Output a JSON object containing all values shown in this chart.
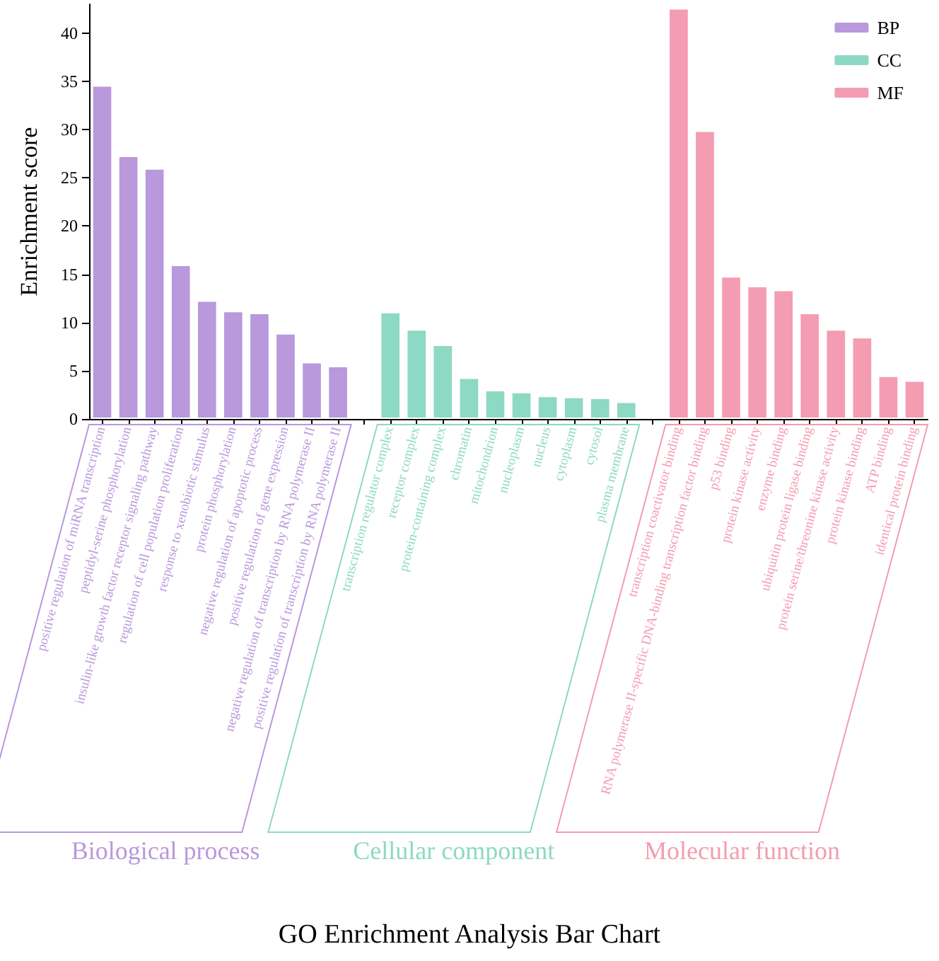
{
  "chart_data": {
    "type": "bar",
    "title": "GO Enrichment Analysis Bar Chart",
    "ylabel": "Enrichment score",
    "categories": [
      "positive regulation of miRNA transcription",
      "peptidyl-serine phosphorylation",
      "insulin-like growth factor receptor signaling pathway",
      "regulation of cell population proliferation",
      "response to xenobiotic stimulus",
      "protein phosphorylation",
      "negative regulation of apoptotic process",
      "positive regulation of gene expression",
      "negative regulation of transcription by RNA polymerase II",
      "positive regulation of transcription by RNA polymerase II",
      null,
      "transcription regulator complex",
      "receptor complex",
      "protein-containing complex",
      "chromatin",
      "mitochondrion",
      "nucleoplasm",
      "nucleus",
      "cytoplasm",
      "cytosol",
      "plasma membrane",
      null,
      "transcription coactivator binding",
      "RNA polymerase II-specific DNA-binding transcription factor binding",
      "p53 binding",
      "protein kinase activity",
      "enzyme binding",
      "ubiquitin protein ligase binding",
      "protein serine/threonine kinase activity",
      "protein kinase binding",
      "ATP binding",
      "identical protein binding"
    ],
    "series": [
      {
        "name": "BP",
        "color": "#b998dc",
        "values": [
          34.6,
          27.3,
          26.0,
          16.0,
          12.3,
          11.2,
          11.0,
          8.9,
          5.9,
          5.5,
          null,
          null,
          null,
          null,
          null,
          null,
          null,
          null,
          null,
          null,
          null,
          null,
          null,
          null,
          null,
          null,
          null,
          null,
          null,
          null,
          null,
          null
        ]
      },
      {
        "name": "CC",
        "color": "#8dd9c3",
        "values": [
          null,
          null,
          null,
          null,
          null,
          null,
          null,
          null,
          null,
          null,
          null,
          11.1,
          9.3,
          7.7,
          4.3,
          3.0,
          2.8,
          2.4,
          2.3,
          2.2,
          1.8,
          null,
          null,
          null,
          null,
          null,
          null,
          null,
          null,
          null,
          null,
          null
        ]
      },
      {
        "name": "MF",
        "color": "#f49cb1",
        "values": [
          null,
          null,
          null,
          null,
          null,
          null,
          null,
          null,
          null,
          null,
          null,
          null,
          null,
          null,
          null,
          null,
          null,
          null,
          null,
          null,
          null,
          null,
          42.6,
          29.9,
          14.8,
          13.8,
          13.4,
          11.0,
          9.3,
          8.5,
          4.5,
          4.0
        ]
      }
    ],
    "annotations": [
      "Biological process",
      "Cellular component",
      "Molecular function"
    ],
    "ylim": [
      0,
      43
    ],
    "yticks": [
      0,
      5,
      10,
      15,
      20,
      25,
      30,
      35,
      40
    ],
    "grid": false,
    "legend": "top right"
  }
}
